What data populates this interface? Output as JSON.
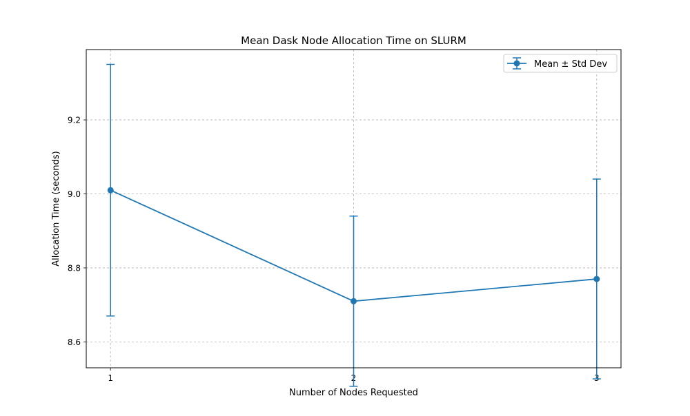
{
  "chart_data": {
    "type": "line",
    "title": "Mean Dask Node Allocation Time on SLURM",
    "xlabel": "Number of Nodes Requested",
    "ylabel": "Allocation Time (seconds)",
    "x": [
      1,
      2,
      3
    ],
    "xticks": [
      1,
      2,
      3
    ],
    "xlim": [
      0.9,
      3.1
    ],
    "yticks": [
      8.6,
      8.8,
      9.0,
      9.2
    ],
    "ylim": [
      8.53,
      9.39
    ],
    "grid": true,
    "grid_style": "dashed",
    "legend_placement": "top-right",
    "series": [
      {
        "name": "Mean ± Std Dev",
        "values": [
          9.01,
          8.71,
          8.77
        ],
        "error": [
          0.34,
          0.23,
          0.27
        ],
        "color": "#1f77b4",
        "marker": "circle"
      }
    ]
  }
}
